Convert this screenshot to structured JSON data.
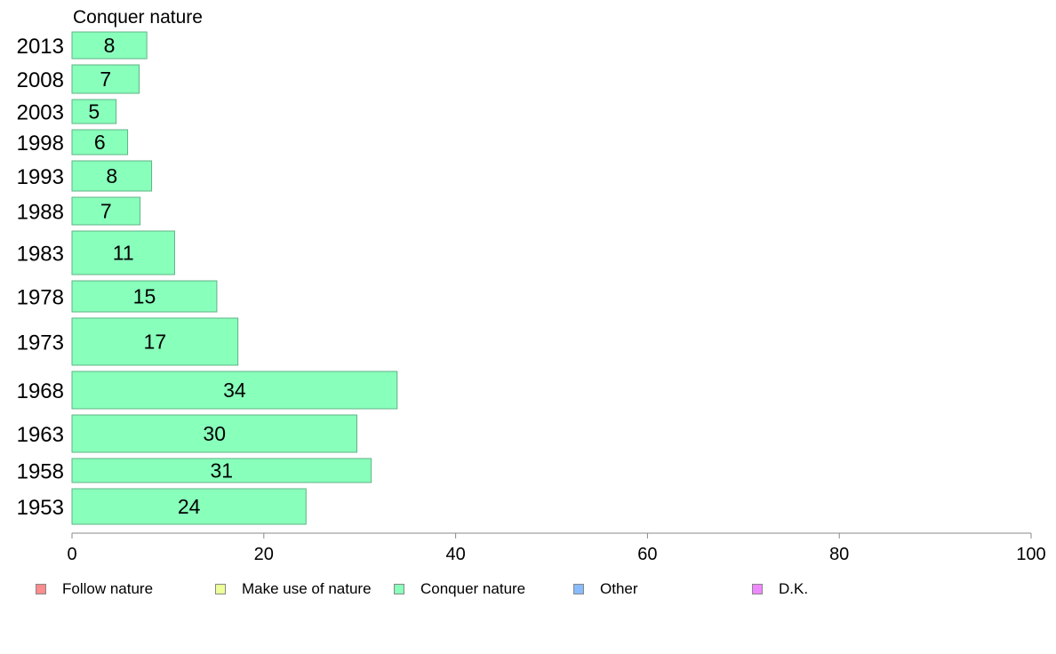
{
  "chart_data": {
    "type": "bar",
    "orientation": "horizontal",
    "title": "Conquer nature",
    "categories": [
      "2013",
      "2008",
      "2003",
      "1998",
      "1993",
      "1988",
      "1983",
      "1978",
      "1973",
      "1968",
      "1963",
      "1958",
      "1953"
    ],
    "series": [
      {
        "name": "Conquer nature",
        "values": [
          8,
          7,
          5,
          6,
          8,
          7,
          11,
          15,
          17,
          34,
          30,
          31,
          24
        ]
      }
    ],
    "bar_value_exact": [
      7.8,
      7.0,
      4.6,
      5.8,
      8.3,
      7.1,
      10.7,
      15.1,
      17.3,
      33.9,
      29.7,
      31.2,
      24.4
    ],
    "bar_thickness_relative": [
      30,
      32,
      27,
      28,
      34,
      31,
      49,
      35,
      53,
      42,
      42,
      27,
      40
    ],
    "xlim": [
      0,
      100
    ],
    "xticks": [
      "0",
      "20",
      "40",
      "60",
      "80",
      "100"
    ],
    "xlabel": "",
    "ylabel": "",
    "grid": false,
    "legend_position": "bottom",
    "legend": [
      {
        "label": "Follow nature",
        "color": "#ff8c8c"
      },
      {
        "label": "Make use of nature",
        "color": "#eeff99"
      },
      {
        "label": "Conquer nature",
        "color": "#88ffbb"
      },
      {
        "label": "Other",
        "color": "#88bbff"
      },
      {
        "label": "D.K.",
        "color": "#ee88ff"
      }
    ],
    "bar_color": "#88ffbb",
    "bar_border_color": "#5fb385"
  }
}
